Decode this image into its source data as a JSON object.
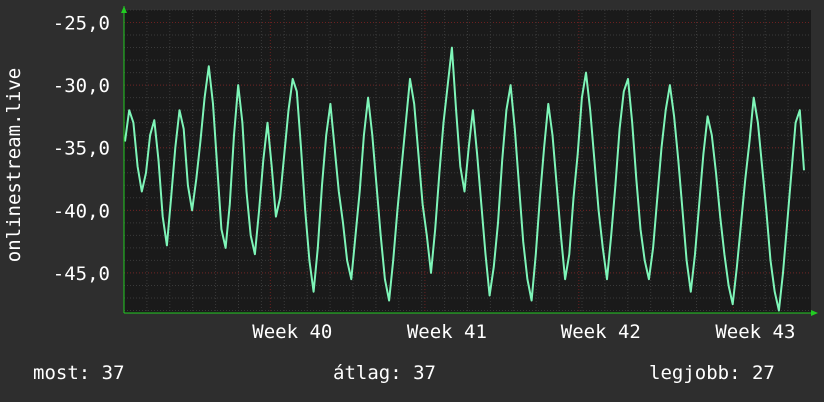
{
  "chart_data": {
    "type": "line",
    "ylabel": "onlinestream.live",
    "ylim": [
      -48.2,
      -24.0
    ],
    "yticks": [
      -25.0,
      -30.0,
      -35.0,
      -40.0,
      -45.0
    ],
    "ytick_labels": [
      "-25,0",
      "-30,0",
      "-35,0",
      "-40,0",
      "-45,0"
    ],
    "x_ticks": [
      {
        "label": "Week 40",
        "pos": 0.213
      },
      {
        "label": "Week 41",
        "pos": 0.438
      },
      {
        "label": "Week 42",
        "pos": 0.662
      },
      {
        "label": "Week 43",
        "pos": 0.887
      }
    ],
    "grid": true,
    "colors": {
      "background": "#2e2e2e",
      "plot": "#1a1a1a",
      "line": "#7ef5b8",
      "grid_major": "#6b2020",
      "grid_minor": "#3a3a3a",
      "arrow": "#22cc22"
    },
    "series": [
      {
        "values": [
          -34.5,
          -32.0,
          -33.0,
          -36.5,
          -38.5,
          -37.0,
          -34.0,
          -32.8,
          -36.0,
          -40.5,
          -42.8,
          -39.0,
          -35.0,
          -32.0,
          -33.5,
          -38.0,
          -40.0,
          -37.5,
          -34.5,
          -31.0,
          -28.5,
          -31.5,
          -36.5,
          -41.5,
          -43.0,
          -39.5,
          -34.0,
          -30.0,
          -33.0,
          -38.5,
          -42.0,
          -43.5,
          -40.0,
          -36.0,
          -33.0,
          -36.5,
          -40.5,
          -39.0,
          -35.5,
          -32.0,
          -29.5,
          -30.5,
          -35.0,
          -40.0,
          -44.0,
          -46.5,
          -43.0,
          -38.0,
          -34.0,
          -31.5,
          -35.0,
          -38.5,
          -41.0,
          -44.0,
          -45.5,
          -42.0,
          -38.5,
          -34.0,
          -31.0,
          -34.0,
          -38.0,
          -42.0,
          -45.5,
          -47.2,
          -44.0,
          -40.0,
          -36.5,
          -33.0,
          -29.5,
          -31.5,
          -35.5,
          -39.5,
          -42.0,
          -45.0,
          -41.5,
          -37.0,
          -33.0,
          -30.0,
          -27.0,
          -32.0,
          -36.5,
          -38.5,
          -35.0,
          -32.0,
          -35.5,
          -39.5,
          -43.5,
          -46.8,
          -44.5,
          -41.0,
          -36.0,
          -32.0,
          -30.0,
          -33.5,
          -38.0,
          -42.5,
          -45.5,
          -47.2,
          -43.5,
          -39.0,
          -35.0,
          -31.5,
          -34.0,
          -38.0,
          -42.0,
          -45.5,
          -43.5,
          -39.0,
          -35.5,
          -31.0,
          -29.0,
          -32.0,
          -36.0,
          -40.0,
          -43.0,
          -45.5,
          -42.0,
          -38.0,
          -33.5,
          -30.5,
          -29.5,
          -33.0,
          -37.5,
          -41.5,
          -44.0,
          -45.5,
          -43.0,
          -39.0,
          -35.0,
          -32.0,
          -30.0,
          -32.5,
          -36.0,
          -40.0,
          -44.0,
          -46.5,
          -43.5,
          -39.5,
          -35.5,
          -32.5,
          -34.0,
          -37.0,
          -40.5,
          -43.5,
          -46.0,
          -47.5,
          -44.5,
          -41.0,
          -37.5,
          -34.5,
          -31.0,
          -33.0,
          -36.5,
          -40.0,
          -44.0,
          -46.5,
          -48.0,
          -45.0,
          -41.0,
          -37.0,
          -33.0,
          -32.0,
          -36.8
        ]
      }
    ]
  },
  "footer": {
    "current": "most: 37",
    "average": "átlag: 37",
    "best": "legjobb: 27"
  }
}
